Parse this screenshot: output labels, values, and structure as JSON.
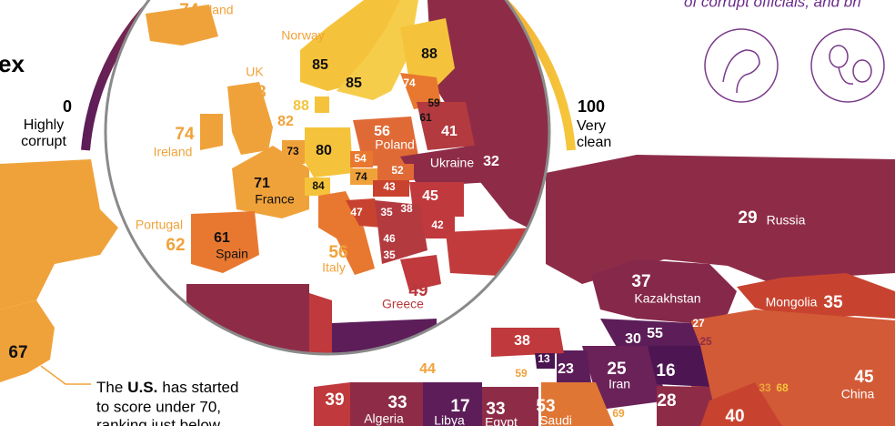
{
  "header": {
    "title_fragment": "ex",
    "top_note": "of corrupt officials, and bri"
  },
  "legend": {
    "min": 0,
    "min_label": [
      "Highly",
      "corrupt"
    ],
    "max": 100,
    "max_label": [
      "Very",
      "clean"
    ]
  },
  "regions": [
    {
      "name": "Iceland",
      "score": 74
    },
    {
      "name": "Norway",
      "score": 85
    },
    {
      "score": 88
    },
    {
      "score": 85
    },
    {
      "name": "UK",
      "score": 78
    },
    {
      "score": 88
    },
    {
      "score": 82
    },
    {
      "name": "Ireland",
      "score": 74
    },
    {
      "score": 74
    },
    {
      "score": 59
    },
    {
      "score": 61
    },
    {
      "name": "Poland",
      "score": 56
    },
    {
      "score": 41
    },
    {
      "score": 73
    },
    {
      "score": 80
    },
    {
      "score": 54
    },
    {
      "name": "Ukraine",
      "score": 32
    },
    {
      "score": 52
    },
    {
      "score": 74
    },
    {
      "name": "France",
      "score": 71
    },
    {
      "score": 84
    },
    {
      "score": 43
    },
    {
      "score": 45
    },
    {
      "score": 47
    },
    {
      "score": 35
    },
    {
      "score": 38
    },
    {
      "score": 42
    },
    {
      "score": 46
    },
    {
      "score": 35
    },
    {
      "name": "Portugal",
      "score": 62
    },
    {
      "name": "Spain",
      "score": 61
    },
    {
      "name": "Italy",
      "score": 56
    },
    {
      "name": "Greece",
      "score": 49
    },
    {
      "name": "Russia",
      "score": 29
    },
    {
      "name": "Kazakhstan",
      "score": 37
    },
    {
      "name": "Mongolia",
      "score": 35
    },
    {
      "score": 27
    },
    {
      "score": 25
    },
    {
      "score": 30
    },
    {
      "score": 55
    },
    {
      "score": 38
    },
    {
      "score": 24
    },
    {
      "score": 13
    },
    {
      "score": 59
    },
    {
      "score": 23
    },
    {
      "name": "Iran",
      "score": 25
    },
    {
      "score": 16
    },
    {
      "score": 28
    },
    {
      "score": 44
    },
    {
      "score": 39
    },
    {
      "name": "Algeria",
      "score": 33
    },
    {
      "name": "Libya",
      "score": 17
    },
    {
      "name": "Egypt",
      "score": 33
    },
    {
      "name": "Saudi",
      "score": 53
    },
    {
      "score": 69
    },
    {
      "score": 40
    },
    {
      "name": "China",
      "score": 45
    },
    {
      "score": 33
    },
    {
      "score": 68
    },
    {
      "score": 67
    }
  ],
  "annotation": {
    "lines": [
      [
        "The",
        "U.S.",
        "has started"
      ],
      [
        "to score under 70,"
      ],
      [
        "ranking just below"
      ]
    ]
  }
}
